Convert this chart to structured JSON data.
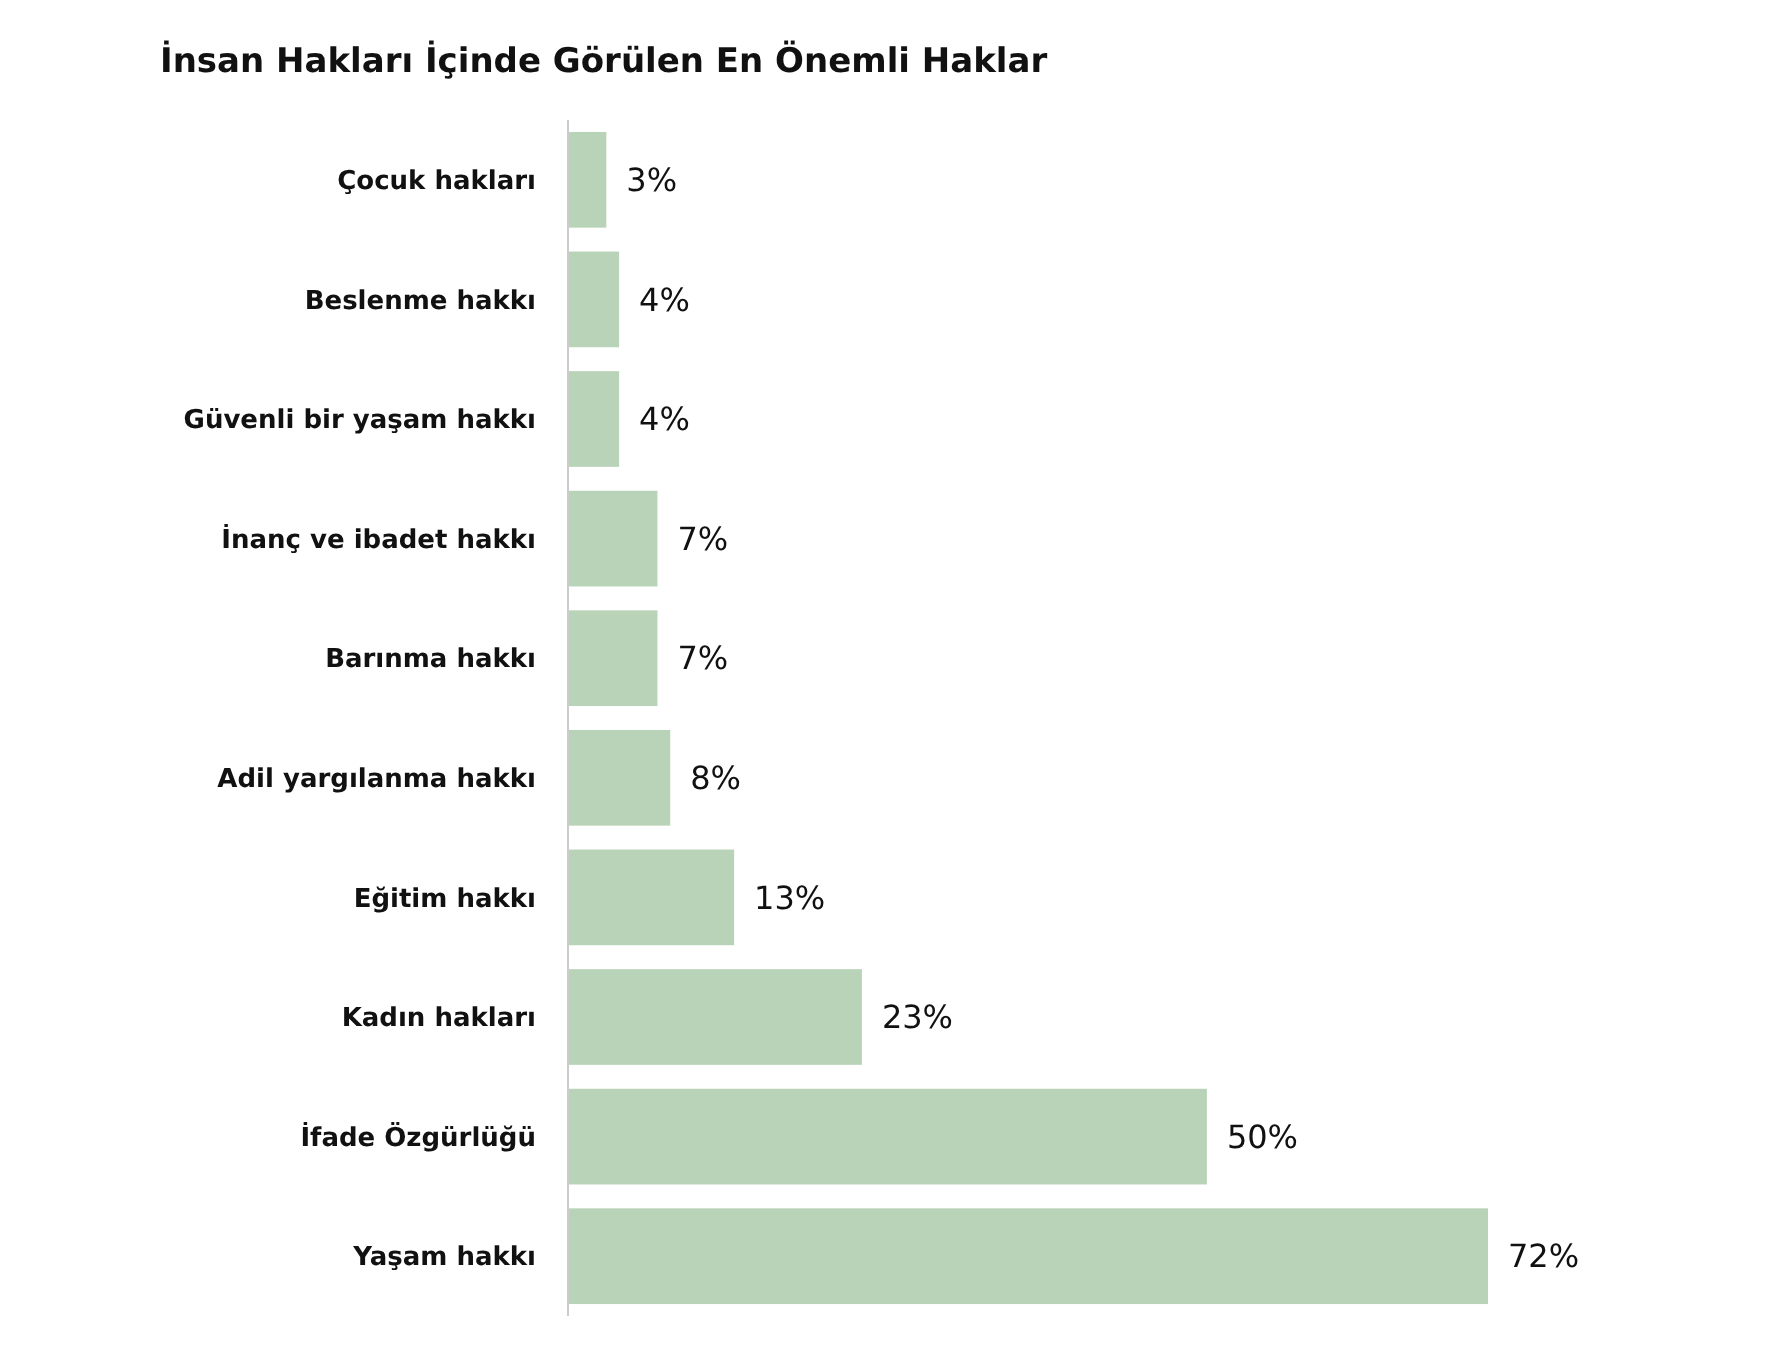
{
  "chart_data": {
    "type": "bar",
    "orientation": "horizontal",
    "title": "İnsan Hakları İçinde Görülen En Önemli Haklar",
    "categories": [
      "Çocuk hakları",
      "Beslenme hakkı",
      "Güvenli bir yaşam hakkı",
      "İnanç ve ibadet hakkı",
      "Barınma hakkı",
      "Adil yargılanma hakkı",
      "Eğitim hakkı",
      "Kadın hakları",
      "İfade Özgürlüğü",
      "Yaşam hakkı"
    ],
    "values": [
      3,
      4,
      4,
      7,
      7,
      8,
      13,
      23,
      50,
      72
    ],
    "value_labels": [
      "3%",
      "4%",
      "4%",
      "7%",
      "7%",
      "8%",
      "13%",
      "23%",
      "50%",
      "72%"
    ],
    "color": "#b9d3b8"
  }
}
